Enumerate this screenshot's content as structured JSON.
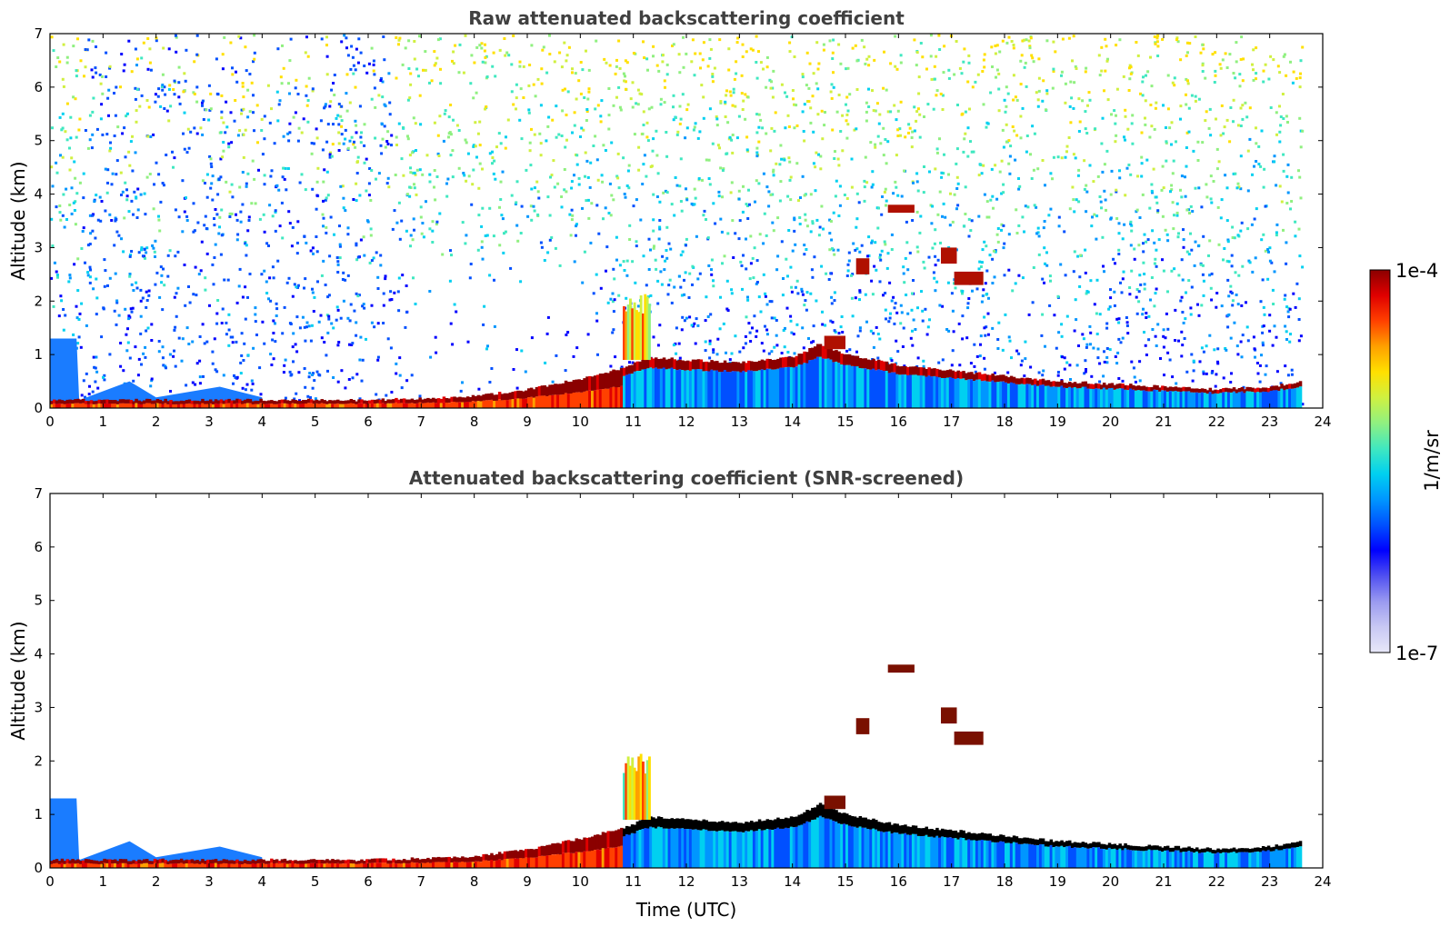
{
  "colors": {
    "colormap": [
      "#e8e8f8",
      "#c8c8f4",
      "#9a9af0",
      "#5050f0",
      "#0000ff",
      "#0050ff",
      "#0096ff",
      "#00d0f0",
      "#40e8c0",
      "#90f080",
      "#d0f040",
      "#ffe000",
      "#ffa000",
      "#ff4000",
      "#e00000",
      "#8b0000"
    ],
    "axis": "#000000",
    "title": "#404040",
    "strong_signal_mask": "#000000"
  },
  "colorbar": {
    "max_label": "1e-4",
    "min_label": "1e-7",
    "unit_label": "1/m/sr",
    "scale": "log"
  },
  "chart_data": [
    {
      "type": "heatmap",
      "title": "Raw attenuated backscattering coefficient",
      "xlabel": "",
      "ylabel": "Altitude (km)",
      "xlim": [
        0,
        24
      ],
      "ylim": [
        0,
        7
      ],
      "xticks": [
        "0",
        "1",
        "2",
        "3",
        "4",
        "5",
        "6",
        "7",
        "8",
        "9",
        "10",
        "11",
        "12",
        "13",
        "14",
        "15",
        "16",
        "17",
        "18",
        "19",
        "20",
        "21",
        "22",
        "23",
        "24"
      ],
      "yticks": [
        "0",
        "1",
        "2",
        "3",
        "4",
        "5",
        "6",
        "7"
      ],
      "colorscale": {
        "min": 1e-07,
        "max": 0.0001,
        "scale": "log",
        "unit": "1/m/sr"
      },
      "data_end_time": 23.6,
      "noise_above_boundary_layer": true,
      "features": {
        "boundary_layer_top_km": [
          [
            0,
            0.15
          ],
          [
            1,
            0.15
          ],
          [
            2,
            0.15
          ],
          [
            4,
            0.15
          ],
          [
            6,
            0.15
          ],
          [
            7,
            0.18
          ],
          [
            8,
            0.22
          ],
          [
            9,
            0.35
          ],
          [
            10,
            0.55
          ],
          [
            10.8,
            0.75
          ],
          [
            11.3,
            0.95
          ],
          [
            12,
            0.9
          ],
          [
            13,
            0.85
          ],
          [
            14,
            0.95
          ],
          [
            14.5,
            1.2
          ],
          [
            15,
            1.0
          ],
          [
            16,
            0.8
          ],
          [
            17,
            0.7
          ],
          [
            18,
            0.6
          ],
          [
            19,
            0.5
          ],
          [
            20,
            0.45
          ],
          [
            21,
            0.4
          ],
          [
            22,
            0.35
          ],
          [
            23,
            0.4
          ],
          [
            23.6,
            0.5
          ]
        ],
        "near_surface_aerosol_km": [
          [
            0,
            1.3
          ],
          [
            0.5,
            1.3
          ],
          [
            0.55,
            0.15
          ],
          [
            1.5,
            0.5
          ],
          [
            2,
            0.2
          ],
          [
            3.2,
            0.4
          ],
          [
            4,
            0.2
          ]
        ],
        "plume_at_11h": {
          "time": [
            10.8,
            11.3
          ],
          "top_km": 2.2
        },
        "cloud_segments": [
          {
            "time": [
              15.2,
              15.45
            ],
            "base_km": 2.5,
            "top_km": 2.8
          },
          {
            "time": [
              16.8,
              17.1
            ],
            "base_km": 2.7,
            "top_km": 3.0
          },
          {
            "time": [
              17.05,
              17.6
            ],
            "base_km": 2.3,
            "top_km": 2.55
          },
          {
            "time": [
              15.8,
              16.3
            ],
            "base_km": 3.65,
            "top_km": 3.8
          },
          {
            "time": [
              14.6,
              15.0
            ],
            "base_km": 1.1,
            "top_km": 1.35
          }
        ]
      }
    },
    {
      "type": "heatmap",
      "title": "Attenuated backscattering coefficient (SNR-screened)",
      "xlabel": "Time (UTC)",
      "ylabel": "Altitude (km)",
      "xlim": [
        0,
        24
      ],
      "ylim": [
        0,
        7
      ],
      "xticks": [
        "0",
        "1",
        "2",
        "3",
        "4",
        "5",
        "6",
        "7",
        "8",
        "9",
        "10",
        "11",
        "12",
        "13",
        "14",
        "15",
        "16",
        "17",
        "18",
        "19",
        "20",
        "21",
        "22",
        "23",
        "24"
      ],
      "yticks": [
        "0",
        "1",
        "2",
        "3",
        "4",
        "5",
        "6",
        "7"
      ],
      "colorscale": {
        "min": 1e-07,
        "max": 0.0001,
        "scale": "log",
        "unit": "1/m/sr"
      },
      "data_end_time": 23.6,
      "noise_above_boundary_layer": false,
      "features": {
        "boundary_layer_top_km": [
          [
            0,
            0.15
          ],
          [
            1,
            0.15
          ],
          [
            2,
            0.15
          ],
          [
            4,
            0.15
          ],
          [
            6,
            0.15
          ],
          [
            7,
            0.18
          ],
          [
            8,
            0.22
          ],
          [
            9,
            0.35
          ],
          [
            10,
            0.55
          ],
          [
            10.8,
            0.75
          ],
          [
            11.3,
            0.95
          ],
          [
            12,
            0.9
          ],
          [
            13,
            0.85
          ],
          [
            14,
            0.95
          ],
          [
            14.5,
            1.2
          ],
          [
            15,
            1.0
          ],
          [
            16,
            0.8
          ],
          [
            17,
            0.7
          ],
          [
            18,
            0.6
          ],
          [
            19,
            0.5
          ],
          [
            20,
            0.45
          ],
          [
            21,
            0.4
          ],
          [
            22,
            0.35
          ],
          [
            23,
            0.4
          ],
          [
            23.6,
            0.5
          ]
        ],
        "near_surface_aerosol_km": [
          [
            0,
            1.3
          ],
          [
            0.5,
            1.3
          ],
          [
            0.55,
            0.15
          ],
          [
            1.5,
            0.5
          ],
          [
            2,
            0.2
          ],
          [
            3.2,
            0.4
          ],
          [
            4,
            0.2
          ]
        ],
        "plume_at_11h": {
          "time": [
            10.8,
            11.3
          ],
          "top_km": 2.2
        },
        "cloud_segments": [
          {
            "time": [
              15.2,
              15.45
            ],
            "base_km": 2.5,
            "top_km": 2.8
          },
          {
            "time": [
              16.8,
              17.1
            ],
            "base_km": 2.7,
            "top_km": 3.0
          },
          {
            "time": [
              17.05,
              17.6
            ],
            "base_km": 2.3,
            "top_km": 2.55
          },
          {
            "time": [
              15.8,
              16.3
            ],
            "base_km": 3.65,
            "top_km": 3.8
          },
          {
            "time": [
              14.6,
              15.0
            ],
            "base_km": 1.1,
            "top_km": 1.35
          }
        ]
      }
    }
  ]
}
